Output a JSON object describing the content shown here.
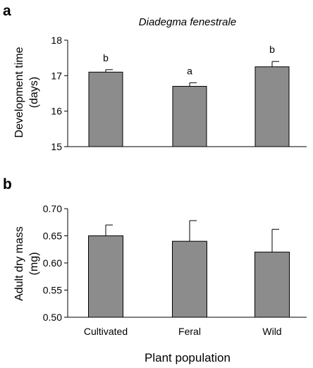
{
  "chart_data": [
    {
      "type": "bar",
      "panel": "a",
      "title": "Diadegma fenestrale",
      "ylabel": [
        "Development time",
        "(days)"
      ],
      "categories": [
        "Cultivated",
        "Feral",
        "Wild"
      ],
      "values": [
        17.1,
        16.7,
        17.25
      ],
      "errors": [
        0.07,
        0.1,
        0.15
      ],
      "letters": [
        "b",
        "a",
        "b"
      ],
      "ylim": [
        15,
        18
      ],
      "yticks": [
        "15",
        "16",
        "17",
        "18"
      ],
      "bar_color": "#8c8c8c"
    },
    {
      "type": "bar",
      "panel": "b",
      "ylabel": [
        "Adult dry mass",
        "(mg)"
      ],
      "categories": [
        "Cultivated",
        "Feral",
        "Wild"
      ],
      "values": [
        0.65,
        0.64,
        0.62
      ],
      "errors": [
        0.02,
        0.038,
        0.042
      ],
      "ylim": [
        0.5,
        0.7
      ],
      "yticks": [
        "0.50",
        "0.55",
        "0.60",
        "0.65",
        "0.70"
      ],
      "xlabel": "Plant population",
      "bar_color": "#8c8c8c"
    }
  ]
}
